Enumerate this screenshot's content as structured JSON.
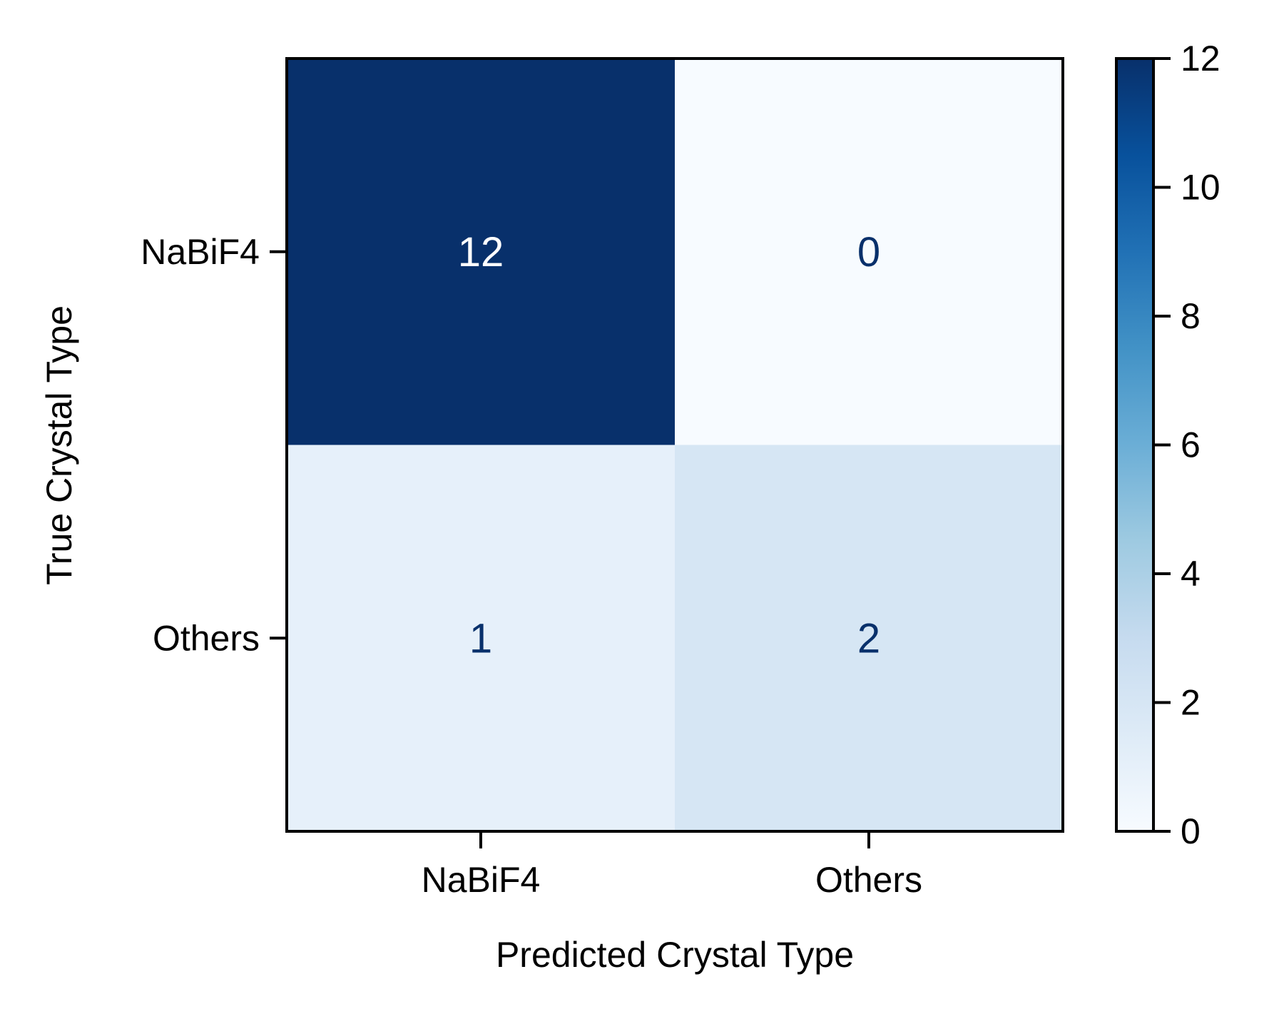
{
  "chart_data": {
    "type": "heatmap",
    "title": "",
    "xlabel": "Predicted Crystal Type",
    "ylabel": "True Crystal Type",
    "x_categories": [
      "NaBiF4",
      "Others"
    ],
    "y_categories": [
      "NaBiF4",
      "Others"
    ],
    "matrix": [
      [
        12,
        0
      ],
      [
        1,
        2
      ]
    ],
    "colormap": "Blues",
    "colorbar": {
      "min": 0,
      "max": 12,
      "ticks": [
        "0",
        "2",
        "4",
        "6",
        "8",
        "10",
        "12"
      ]
    },
    "colors": {
      "low": "#f7fbff",
      "high": "#08306b",
      "text_on_dark": "#ffffff",
      "text_on_light": "#08306b"
    }
  }
}
